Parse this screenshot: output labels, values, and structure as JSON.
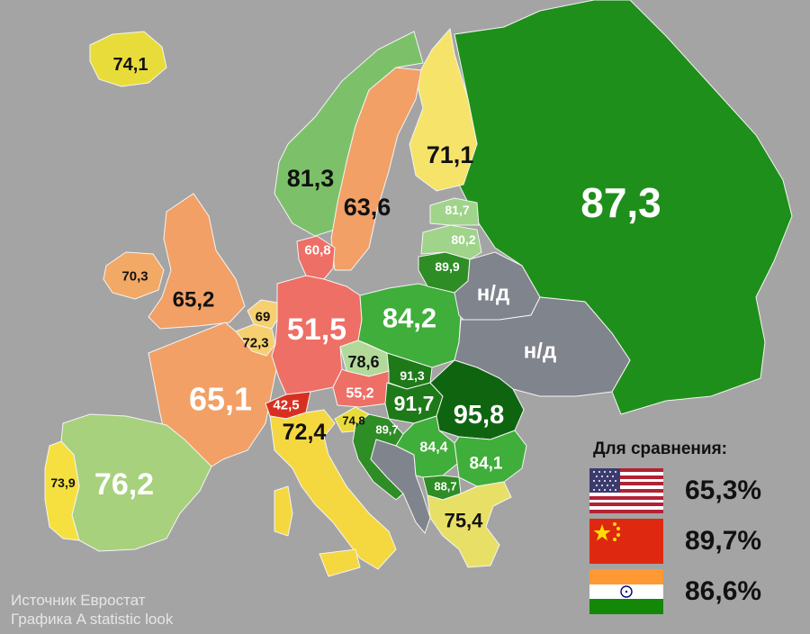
{
  "map": {
    "regions": [
      {
        "id": "russia",
        "value": "87,3",
        "color": "#1e8f1a"
      },
      {
        "id": "iceland",
        "value": "74,1",
        "color": "#e8dc3a"
      },
      {
        "id": "norway",
        "value": "81,3",
        "color": "#7cc169"
      },
      {
        "id": "sweden",
        "value": "63,6",
        "color": "#f2a066"
      },
      {
        "id": "finland",
        "value": "71,1",
        "color": "#f6e36a"
      },
      {
        "id": "estonia",
        "value": "81,7",
        "color": "#9fd48a"
      },
      {
        "id": "latvia",
        "value": "80,2",
        "color": "#9fd48a"
      },
      {
        "id": "lithuania",
        "value": "89,9",
        "color": "#2e8d24"
      },
      {
        "id": "belarus",
        "value": "н/д",
        "color": "#80848c"
      },
      {
        "id": "ukraine",
        "value": "н/д",
        "color": "#80848c"
      },
      {
        "id": "ireland",
        "value": "70,3",
        "color": "#f2a966"
      },
      {
        "id": "uk",
        "value": "65,2",
        "color": "#f2a066"
      },
      {
        "id": "denmark",
        "value": "60,8",
        "color": "#ee6f66"
      },
      {
        "id": "netherlands",
        "value": "69",
        "color": "#f6d070"
      },
      {
        "id": "belgium",
        "value": "72,3",
        "color": "#f6d070"
      },
      {
        "id": "germany",
        "value": "51,5",
        "color": "#ee6f66"
      },
      {
        "id": "poland",
        "value": "84,2",
        "color": "#3fae3a"
      },
      {
        "id": "czechia",
        "value": "78,6",
        "color": "#b3d99a"
      },
      {
        "id": "slovakia",
        "value": "91,3",
        "color": "#1e7a18"
      },
      {
        "id": "austria",
        "value": "55,2",
        "color": "#ee6f66"
      },
      {
        "id": "hungary",
        "value": "91,7",
        "color": "#1e7a18"
      },
      {
        "id": "romania",
        "value": "95,8",
        "color": "#0f6410"
      },
      {
        "id": "france",
        "value": "65,1",
        "color": "#f2a066"
      },
      {
        "id": "switzerland",
        "value": "42,5",
        "color": "#d83020"
      },
      {
        "id": "italy",
        "value": "72,4",
        "color": "#f5d840"
      },
      {
        "id": "slovenia",
        "value": "74,8",
        "color": "#e8dc3a"
      },
      {
        "id": "croatia",
        "value": "89,7",
        "color": "#2e8d24"
      },
      {
        "id": "serbia",
        "value": "84,4",
        "color": "#3fae3a"
      },
      {
        "id": "bulgaria",
        "value": "84,1",
        "color": "#3fae3a"
      },
      {
        "id": "macedonia",
        "value": "88,7",
        "color": "#2e8d24"
      },
      {
        "id": "greece",
        "value": "75,4",
        "color": "#e8e066"
      },
      {
        "id": "spain",
        "value": "76,2",
        "color": "#a7d17c"
      },
      {
        "id": "portugal",
        "value": "73,9",
        "color": "#f5e040"
      },
      {
        "id": "balkans-nodata",
        "value": "",
        "color": "#80848c"
      }
    ]
  },
  "legend": {
    "title": "Для сравнения:",
    "items": [
      {
        "flag": "usa-flag-icon",
        "value": "65,3%"
      },
      {
        "flag": "china-flag-icon",
        "value": "89,7%"
      },
      {
        "flag": "india-flag-icon",
        "value": "86,6%"
      }
    ]
  },
  "source": {
    "line1": "Источник Евростат",
    "line2": "Графика A statistic look"
  }
}
